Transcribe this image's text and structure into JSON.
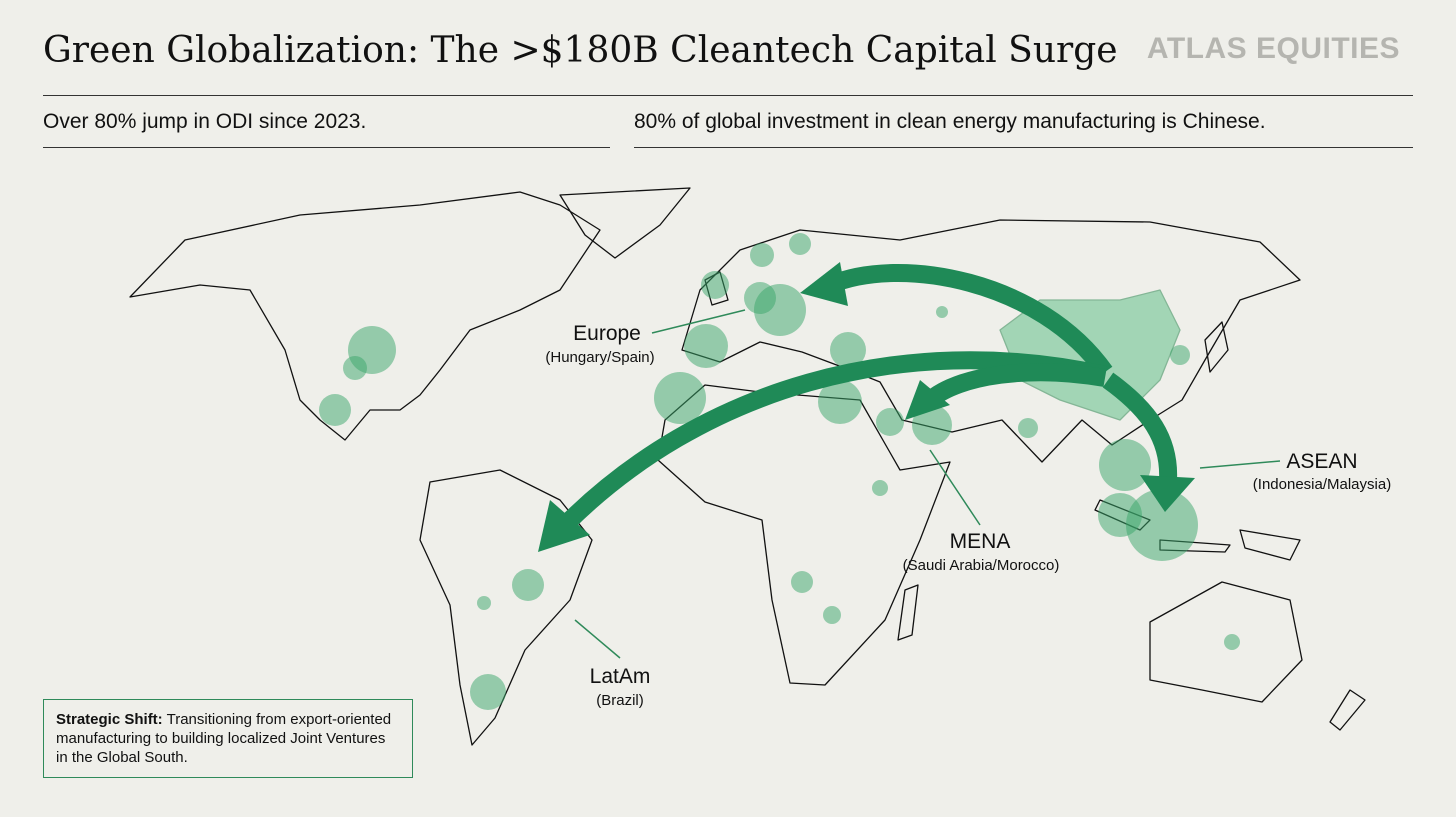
{
  "header": {
    "title": "Green Globalization: The >$180B Cleantech Capital Surge",
    "brand": "ATLAS EQUITIES"
  },
  "stats": [
    "Over 80% jump in ODI since 2023.",
    "80% of global investment in clean energy manufacturing is Chinese."
  ],
  "regions": [
    {
      "name": "Europe",
      "detail": "(Hungary/Spain)"
    },
    {
      "name": "MENA",
      "detail": "(Saudi Arabia/Morocco)"
    },
    {
      "name": "ASEAN",
      "detail": "(Indonesia/Malaysia)"
    },
    {
      "name": "LatAm",
      "detail": "(Brazil)"
    }
  ],
  "note": {
    "label": "Strategic Shift:",
    "text": "Transitioning from export-oriented manufacturing to building localized Joint Ventures in the Global South."
  }
}
